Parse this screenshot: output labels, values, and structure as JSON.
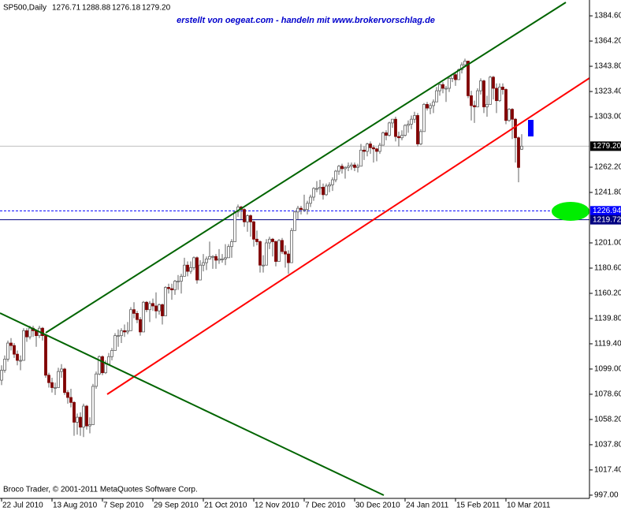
{
  "chart_data": {
    "type": "candlestick",
    "title": "SP500,Daily",
    "header_labels": [
      "1276.71",
      "1288.88",
      "1276.18",
      "1279.20"
    ],
    "watermark": "erstellt von oegeat.com - handeln mit www.brokervorschlag.de",
    "copyright": "Broco Trader, © 2001-2011 MetaQuotes Software Corp.",
    "up_color": "#ffffff",
    "down_color": "#800000",
    "xlim": [
      -0.5,
      186.5
    ],
    "ylim": [
      994.4,
      1397.4
    ],
    "yticks": [
      {
        "value": 1384.6,
        "label": "1384.60"
      },
      {
        "value": 1364.2,
        "label": "1364.20"
      },
      {
        "value": 1343.8,
        "label": "1343.80"
      },
      {
        "value": 1323.4,
        "label": "1323.40"
      },
      {
        "value": 1303,
        "label": "1303.00"
      },
      {
        "value": 1262.2,
        "label": "1262.20"
      },
      {
        "value": 1241.8,
        "label": "1241.80"
      },
      {
        "value": 1201,
        "label": "1201.00"
      },
      {
        "value": 1180.6,
        "label": "1180.60"
      },
      {
        "value": 1160.2,
        "label": "1160.20"
      },
      {
        "value": 1139.8,
        "label": "1139.80"
      },
      {
        "value": 1119.4,
        "label": "1119.40"
      },
      {
        "value": 1099,
        "label": "1099.00"
      },
      {
        "value": 1078.6,
        "label": "1078.60"
      },
      {
        "value": 1058.2,
        "label": "1058.20"
      },
      {
        "value": 1037.8,
        "label": "1037.80"
      },
      {
        "value": 1017.4,
        "label": "1017.40"
      },
      {
        "value": 997,
        "label": "997.00"
      }
    ],
    "xticks": [
      {
        "value": 0,
        "label": "22 Jul 2010"
      },
      {
        "value": 16,
        "label": "13 Aug 2010"
      },
      {
        "value": 32,
        "label": "7 Sep 2010"
      },
      {
        "value": 48,
        "label": "29 Sep 2010"
      },
      {
        "value": 64,
        "label": "21 Oct 2010"
      },
      {
        "value": 80,
        "label": "12 Nov 2010"
      },
      {
        "value": 96,
        "label": "7 Dec 2010"
      },
      {
        "value": 112,
        "label": "30 Dec 2010"
      },
      {
        "value": 128,
        "label": "24 Jan 2011"
      },
      {
        "value": 144,
        "label": "15 Feb 2011"
      },
      {
        "value": 160,
        "label": "10 Mar 2011"
      }
    ],
    "price_line": {
      "value": 1279.2,
      "label": "1279.20"
    },
    "levels": [
      {
        "value": 1226.94,
        "color": "#0000ff",
        "dashed": true
      },
      {
        "value": 1219.72,
        "color": "#000080",
        "dashed": false
      }
    ],
    "candles": [
      [
        1090,
        1102,
        1086,
        1098
      ],
      [
        1098,
        1110,
        1096,
        1107
      ],
      [
        1107,
        1122,
        1105,
        1120
      ],
      [
        1120,
        1124,
        1114,
        1118
      ],
      [
        1118,
        1120,
        1108,
        1111
      ],
      [
        1111,
        1114,
        1102,
        1106
      ],
      [
        1106,
        1110,
        1098,
        1106
      ],
      [
        1106,
        1132,
        1106,
        1130
      ],
      [
        1130,
        1132,
        1121,
        1125
      ],
      [
        1125,
        1134,
        1123,
        1132
      ],
      [
        1132,
        1134,
        1125,
        1130
      ],
      [
        1130,
        1131,
        1117,
        1126
      ],
      [
        1126,
        1134,
        1124,
        1132
      ],
      [
        1132,
        1133,
        1122,
        1126
      ],
      [
        1126,
        1127,
        1092,
        1094
      ],
      [
        1094,
        1096,
        1084,
        1088
      ],
      [
        1088,
        1092,
        1080,
        1084
      ],
      [
        1084,
        1088,
        1078,
        1084
      ],
      [
        1084,
        1100,
        1084,
        1097
      ],
      [
        1097,
        1103,
        1092,
        1099
      ],
      [
        1099,
        1100,
        1078,
        1080
      ],
      [
        1080,
        1082,
        1071,
        1076
      ],
      [
        1076,
        1083,
        1068,
        1072
      ],
      [
        1072,
        1073,
        1045,
        1056
      ],
      [
        1056,
        1063,
        1046,
        1060
      ],
      [
        1060,
        1064,
        1045,
        1052
      ],
      [
        1052,
        1071,
        1044,
        1069
      ],
      [
        1069,
        1070,
        1050,
        1053
      ],
      [
        1053,
        1060,
        1047,
        1054
      ],
      [
        1054,
        1087,
        1054,
        1085
      ],
      [
        1085,
        1097,
        1083,
        1095
      ],
      [
        1095,
        1110,
        1094,
        1109
      ],
      [
        1109,
        1110,
        1094,
        1096
      ],
      [
        1096,
        1106,
        1095,
        1103
      ],
      [
        1103,
        1112,
        1102,
        1109
      ],
      [
        1109,
        1116,
        1106,
        1114
      ],
      [
        1114,
        1128,
        1114,
        1126
      ],
      [
        1126,
        1131,
        1117,
        1126
      ],
      [
        1126,
        1132,
        1120,
        1130
      ],
      [
        1130,
        1135,
        1125,
        1129
      ],
      [
        1129,
        1137,
        1127,
        1130
      ],
      [
        1130,
        1149,
        1130,
        1147
      ],
      [
        1147,
        1153,
        1140,
        1144
      ],
      [
        1144,
        1146,
        1136,
        1139
      ],
      [
        1139,
        1141,
        1126,
        1129
      ],
      [
        1129,
        1154,
        1129,
        1153
      ],
      [
        1153,
        1154,
        1145,
        1147
      ],
      [
        1147,
        1154,
        1137,
        1152
      ],
      [
        1152,
        1156,
        1146,
        1150
      ],
      [
        1150,
        1161,
        1140,
        1146
      ],
      [
        1146,
        1152,
        1143,
        1151
      ],
      [
        1151,
        1152,
        1135,
        1142
      ],
      [
        1142,
        1166,
        1142,
        1165
      ],
      [
        1165,
        1168,
        1160,
        1164
      ],
      [
        1164,
        1168,
        1155,
        1163
      ],
      [
        1163,
        1171,
        1159,
        1170
      ],
      [
        1170,
        1175,
        1163,
        1170
      ],
      [
        1170,
        1176,
        1160,
        1174
      ],
      [
        1174,
        1189,
        1174,
        1183
      ],
      [
        1183,
        1186,
        1174,
        1178
      ],
      [
        1178,
        1186,
        1176,
        1181
      ],
      [
        1181,
        1190,
        1179,
        1189
      ],
      [
        1189,
        1190,
        1168,
        1171
      ],
      [
        1171,
        1187,
        1171,
        1183
      ],
      [
        1183,
        1192,
        1178,
        1185
      ],
      [
        1185,
        1190,
        1179,
        1188
      ],
      [
        1188,
        1202,
        1188,
        1190
      ],
      [
        1190,
        1191,
        1180,
        1190
      ],
      [
        1190,
        1192,
        1180,
        1187
      ],
      [
        1187,
        1196,
        1184,
        1188
      ],
      [
        1188,
        1192,
        1185,
        1188
      ],
      [
        1188,
        1200,
        1183,
        1189
      ],
      [
        1189,
        1200,
        1189,
        1198
      ],
      [
        1198,
        1204,
        1189,
        1202
      ],
      [
        1202,
        1227,
        1202,
        1226
      ],
      [
        1226,
        1232,
        1222,
        1230
      ],
      [
        1230,
        1231,
        1220,
        1228
      ],
      [
        1228,
        1229,
        1214,
        1218
      ],
      [
        1218,
        1224,
        1210,
        1223
      ],
      [
        1223,
        1224,
        1206,
        1218
      ],
      [
        1218,
        1219,
        1198,
        1204
      ],
      [
        1204,
        1211,
        1199,
        1202
      ],
      [
        1202,
        1203,
        1177,
        1183
      ],
      [
        1183,
        1191,
        1177,
        1183
      ],
      [
        1183,
        1204,
        1183,
        1201
      ],
      [
        1201,
        1206,
        1196,
        1204
      ],
      [
        1204,
        1205,
        1190,
        1202
      ],
      [
        1202,
        1203,
        1182,
        1186
      ],
      [
        1186,
        1204,
        1186,
        1203
      ],
      [
        1203,
        1205,
        1192,
        1194
      ],
      [
        1194,
        1199,
        1181,
        1192
      ],
      [
        1192,
        1195,
        1176,
        1185
      ],
      [
        1185,
        1213,
        1185,
        1211
      ],
      [
        1211,
        1227,
        1211,
        1226
      ],
      [
        1226,
        1231,
        1220,
        1229
      ],
      [
        1229,
        1231,
        1224,
        1228
      ],
      [
        1228,
        1240,
        1226,
        1228
      ],
      [
        1228,
        1235,
        1224,
        1233
      ],
      [
        1233,
        1240,
        1230,
        1238
      ],
      [
        1238,
        1246,
        1235,
        1245
      ],
      [
        1245,
        1251,
        1242,
        1245
      ],
      [
        1245,
        1252,
        1240,
        1246
      ],
      [
        1246,
        1249,
        1236,
        1240
      ],
      [
        1240,
        1249,
        1239,
        1247
      ],
      [
        1247,
        1250,
        1242,
        1248
      ],
      [
        1248,
        1254,
        1243,
        1252
      ],
      [
        1252,
        1260,
        1250,
        1259
      ],
      [
        1259,
        1264,
        1256,
        1263
      ],
      [
        1263,
        1265,
        1257,
        1261
      ],
      [
        1261,
        1263,
        1253,
        1262
      ],
      [
        1262,
        1266,
        1259,
        1263
      ],
      [
        1263,
        1266,
        1260,
        1264
      ],
      [
        1264,
        1266,
        1259,
        1262
      ],
      [
        1262,
        1265,
        1258,
        1263
      ],
      [
        1263,
        1281,
        1263,
        1276
      ],
      [
        1276,
        1279,
        1268,
        1275
      ],
      [
        1275,
        1282,
        1271,
        1281
      ],
      [
        1281,
        1283,
        1273,
        1278
      ],
      [
        1278,
        1280,
        1266,
        1277
      ],
      [
        1277,
        1278,
        1267,
        1275
      ],
      [
        1275,
        1282,
        1273,
        1280
      ],
      [
        1280,
        1291,
        1280,
        1290
      ],
      [
        1290,
        1292,
        1284,
        1288
      ],
      [
        1288,
        1299,
        1287,
        1298
      ],
      [
        1298,
        1301,
        1294,
        1301
      ],
      [
        1301,
        1303,
        1283,
        1287
      ],
      [
        1287,
        1291,
        1279,
        1286
      ],
      [
        1286,
        1292,
        1284,
        1288
      ],
      [
        1288,
        1297,
        1287,
        1296
      ],
      [
        1296,
        1300,
        1290,
        1297
      ],
      [
        1297,
        1304,
        1293,
        1301
      ],
      [
        1301,
        1307,
        1298,
        1304
      ],
      [
        1304,
        1306,
        1279,
        1281
      ],
      [
        1281,
        1293,
        1280,
        1291
      ],
      [
        1291,
        1314,
        1291,
        1313
      ],
      [
        1313,
        1315,
        1308,
        1310
      ],
      [
        1310,
        1314,
        1305,
        1312
      ],
      [
        1312,
        1317,
        1306,
        1315
      ],
      [
        1315,
        1327,
        1315,
        1324
      ],
      [
        1324,
        1330,
        1320,
        1329
      ],
      [
        1329,
        1331,
        1322,
        1326
      ],
      [
        1326,
        1328,
        1315,
        1326
      ],
      [
        1326,
        1335,
        1323,
        1334
      ],
      [
        1334,
        1338,
        1331,
        1337
      ],
      [
        1337,
        1339,
        1328,
        1333
      ],
      [
        1333,
        1342,
        1333,
        1341
      ],
      [
        1341,
        1347,
        1338,
        1345
      ],
      [
        1345,
        1350,
        1343,
        1348
      ],
      [
        1348,
        1348,
        1318,
        1320
      ],
      [
        1320,
        1324,
        1300,
        1312
      ],
      [
        1312,
        1316,
        1298,
        1311
      ],
      [
        1311,
        1326,
        1311,
        1324
      ],
      [
        1324,
        1334,
        1321,
        1332
      ],
      [
        1332,
        1333,
        1306,
        1311
      ],
      [
        1311,
        1320,
        1303,
        1313
      ],
      [
        1313,
        1336,
        1313,
        1335
      ],
      [
        1335,
        1336,
        1317,
        1326
      ],
      [
        1326,
        1330,
        1306,
        1316
      ],
      [
        1316,
        1330,
        1315,
        1327
      ],
      [
        1327,
        1330,
        1321,
        1325
      ],
      [
        1325,
        1326,
        1297,
        1300
      ],
      [
        1300,
        1310,
        1299,
        1309
      ],
      [
        1309,
        1310,
        1285,
        1301
      ],
      [
        1301,
        1302,
        1266,
        1286
      ],
      [
        1286,
        1287,
        1250,
        1262
      ],
      [
        1276.71,
        1288.88,
        1276.18,
        1279.2
      ]
    ]
  }
}
